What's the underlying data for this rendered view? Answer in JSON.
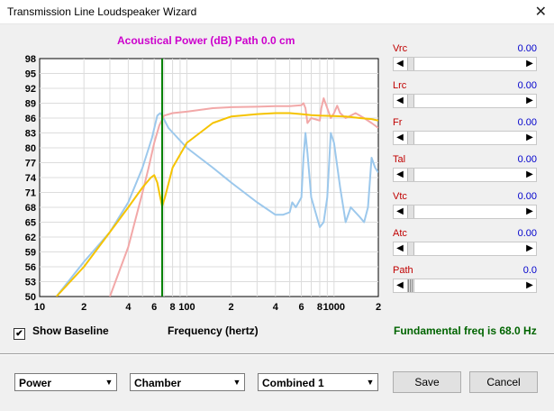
{
  "window": {
    "title": "Transmission Line Loudspeaker Wizard",
    "close_glyph": "✕"
  },
  "chart_title": "Acoustical Power (dB)   Path 0.0 cm",
  "chart_data": {
    "type": "line",
    "xscale": "log",
    "xlim": [
      10,
      2000
    ],
    "ylim": [
      50,
      98
    ],
    "xlabel": "Frequency (hertz)",
    "xticks": [
      10,
      20,
      40,
      60,
      80,
      100,
      200,
      400,
      600,
      800,
      1000,
      2000
    ],
    "xtick_labels": [
      "10",
      "2",
      "4",
      "6",
      "8",
      "100",
      "2",
      "4",
      "6",
      "8",
      "1000",
      "2"
    ],
    "ytick_labels": [
      "98",
      "95",
      "92",
      "89",
      "86",
      "83",
      "80",
      "77",
      "74",
      "71",
      "68",
      "65",
      "62",
      "59",
      "56",
      "53",
      "50"
    ],
    "marker_freq": 68,
    "series": [
      {
        "color": "#9cc8ec",
        "x": [
          13,
          20,
          30,
          40,
          50,
          58,
          63,
          66,
          68,
          75,
          100,
          150,
          200,
          300,
          400,
          450,
          500,
          520,
          550,
          600,
          620,
          640,
          660,
          700,
          800,
          850,
          900,
          950,
          1000,
          1100,
          1200,
          1300,
          1500,
          1600,
          1700,
          1800,
          1900,
          2000
        ],
        "y": [
          50,
          57,
          63,
          69,
          76,
          82,
          86.5,
          87,
          86.5,
          84,
          80,
          76,
          73,
          69,
          66.5,
          66.5,
          67,
          69,
          68,
          70,
          78,
          83,
          79,
          70,
          64,
          65,
          70,
          83,
          81,
          72,
          65,
          68,
          66,
          65,
          68,
          78,
          76,
          75
        ]
      },
      {
        "color": "#f2a8a8",
        "x": [
          30,
          40,
          50,
          55,
          60,
          65,
          70,
          80,
          100,
          150,
          200,
          300,
          400,
          500,
          600,
          620,
          640,
          660,
          700,
          800,
          820,
          850,
          900,
          950,
          1000,
          1050,
          1100,
          1200,
          1300,
          1400,
          1600,
          1800,
          2000
        ],
        "y": [
          50,
          60,
          71,
          76,
          81,
          84.5,
          86.5,
          87,
          87.3,
          88,
          88.2,
          88.3,
          88.4,
          88.4,
          88.6,
          89,
          88,
          85,
          86,
          85.5,
          88,
          90,
          88,
          86,
          87,
          88.5,
          87,
          86,
          86.5,
          87,
          86,
          85,
          84
        ]
      },
      {
        "color": "#f5c300",
        "x": [
          13,
          20,
          30,
          40,
          50,
          57,
          60,
          63,
          66,
          68,
          71,
          80,
          100,
          150,
          200,
          300,
          400,
          500,
          600,
          700,
          800,
          1000,
          1200,
          1500,
          1800,
          2000
        ],
        "y": [
          50,
          56,
          63,
          68,
          72,
          74,
          74.5,
          73,
          70,
          68.2,
          70,
          76,
          81,
          85,
          86.3,
          86.8,
          87,
          87,
          86.8,
          86.6,
          86.5,
          86.4,
          86.3,
          86,
          85.8,
          85.5
        ]
      }
    ]
  },
  "show_baseline": {
    "label": "Show Baseline",
    "checked": "✔"
  },
  "freq_label": "Frequency (hertz)",
  "fundamental_text": "Fundamental freq is 68.0 Hz",
  "params": [
    {
      "name": "Vrc",
      "value": "0.00",
      "level": 0
    },
    {
      "name": "Lrc",
      "value": "0.00",
      "level": 0
    },
    {
      "name": "Fr",
      "value": "0.00",
      "level": 0
    },
    {
      "name": "Tal",
      "value": "0.00",
      "level": 0
    },
    {
      "name": "Vtc",
      "value": "0.00",
      "level": 0
    },
    {
      "name": "Atc",
      "value": "0.00",
      "level": 0
    },
    {
      "name": "Path",
      "value": "0.0",
      "level": 0
    }
  ],
  "selects": {
    "power": "Power",
    "chamber": "Chamber",
    "combined": "Combined 1",
    "arrow": "▼"
  },
  "buttons": {
    "save": "Save",
    "cancel": "Cancel"
  },
  "arrows": {
    "left": "◀",
    "right": "▶"
  },
  "colors": {
    "chart_title": "#cc00cc",
    "marker": "#008000",
    "param_name": "#c00000",
    "param_value": "#0000cc",
    "fundamental": "#006400"
  }
}
